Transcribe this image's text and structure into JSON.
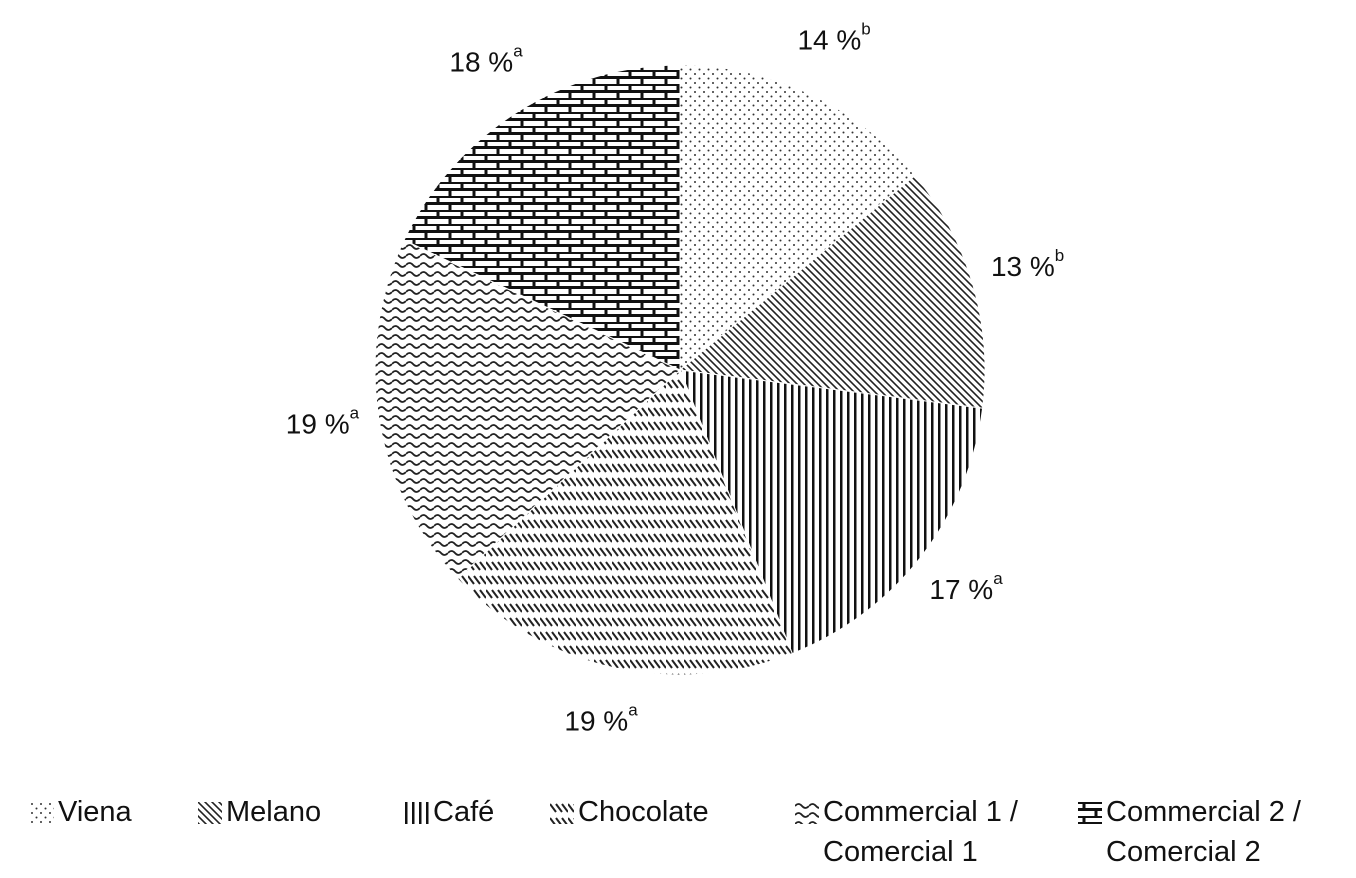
{
  "chart_data": {
    "type": "pie",
    "categories": [
      "Viena",
      "Melano",
      "Café",
      "Chocolate",
      "Commercial 1 / Comercial 1",
      "Commercial 2 / Comercial 2"
    ],
    "values": [
      14,
      13,
      17,
      19,
      19,
      18
    ],
    "value_labels": [
      "14 %",
      "13 %",
      "17 %",
      "19 %",
      "19 %",
      "18 %"
    ],
    "superscripts": [
      "b",
      "b",
      "a",
      "a",
      "a",
      "a"
    ],
    "patterns": [
      "dots",
      "diagonal",
      "vertical",
      "chevron",
      "wave",
      "brick"
    ],
    "start_angle": 0,
    "direction": "clockwise"
  }
}
